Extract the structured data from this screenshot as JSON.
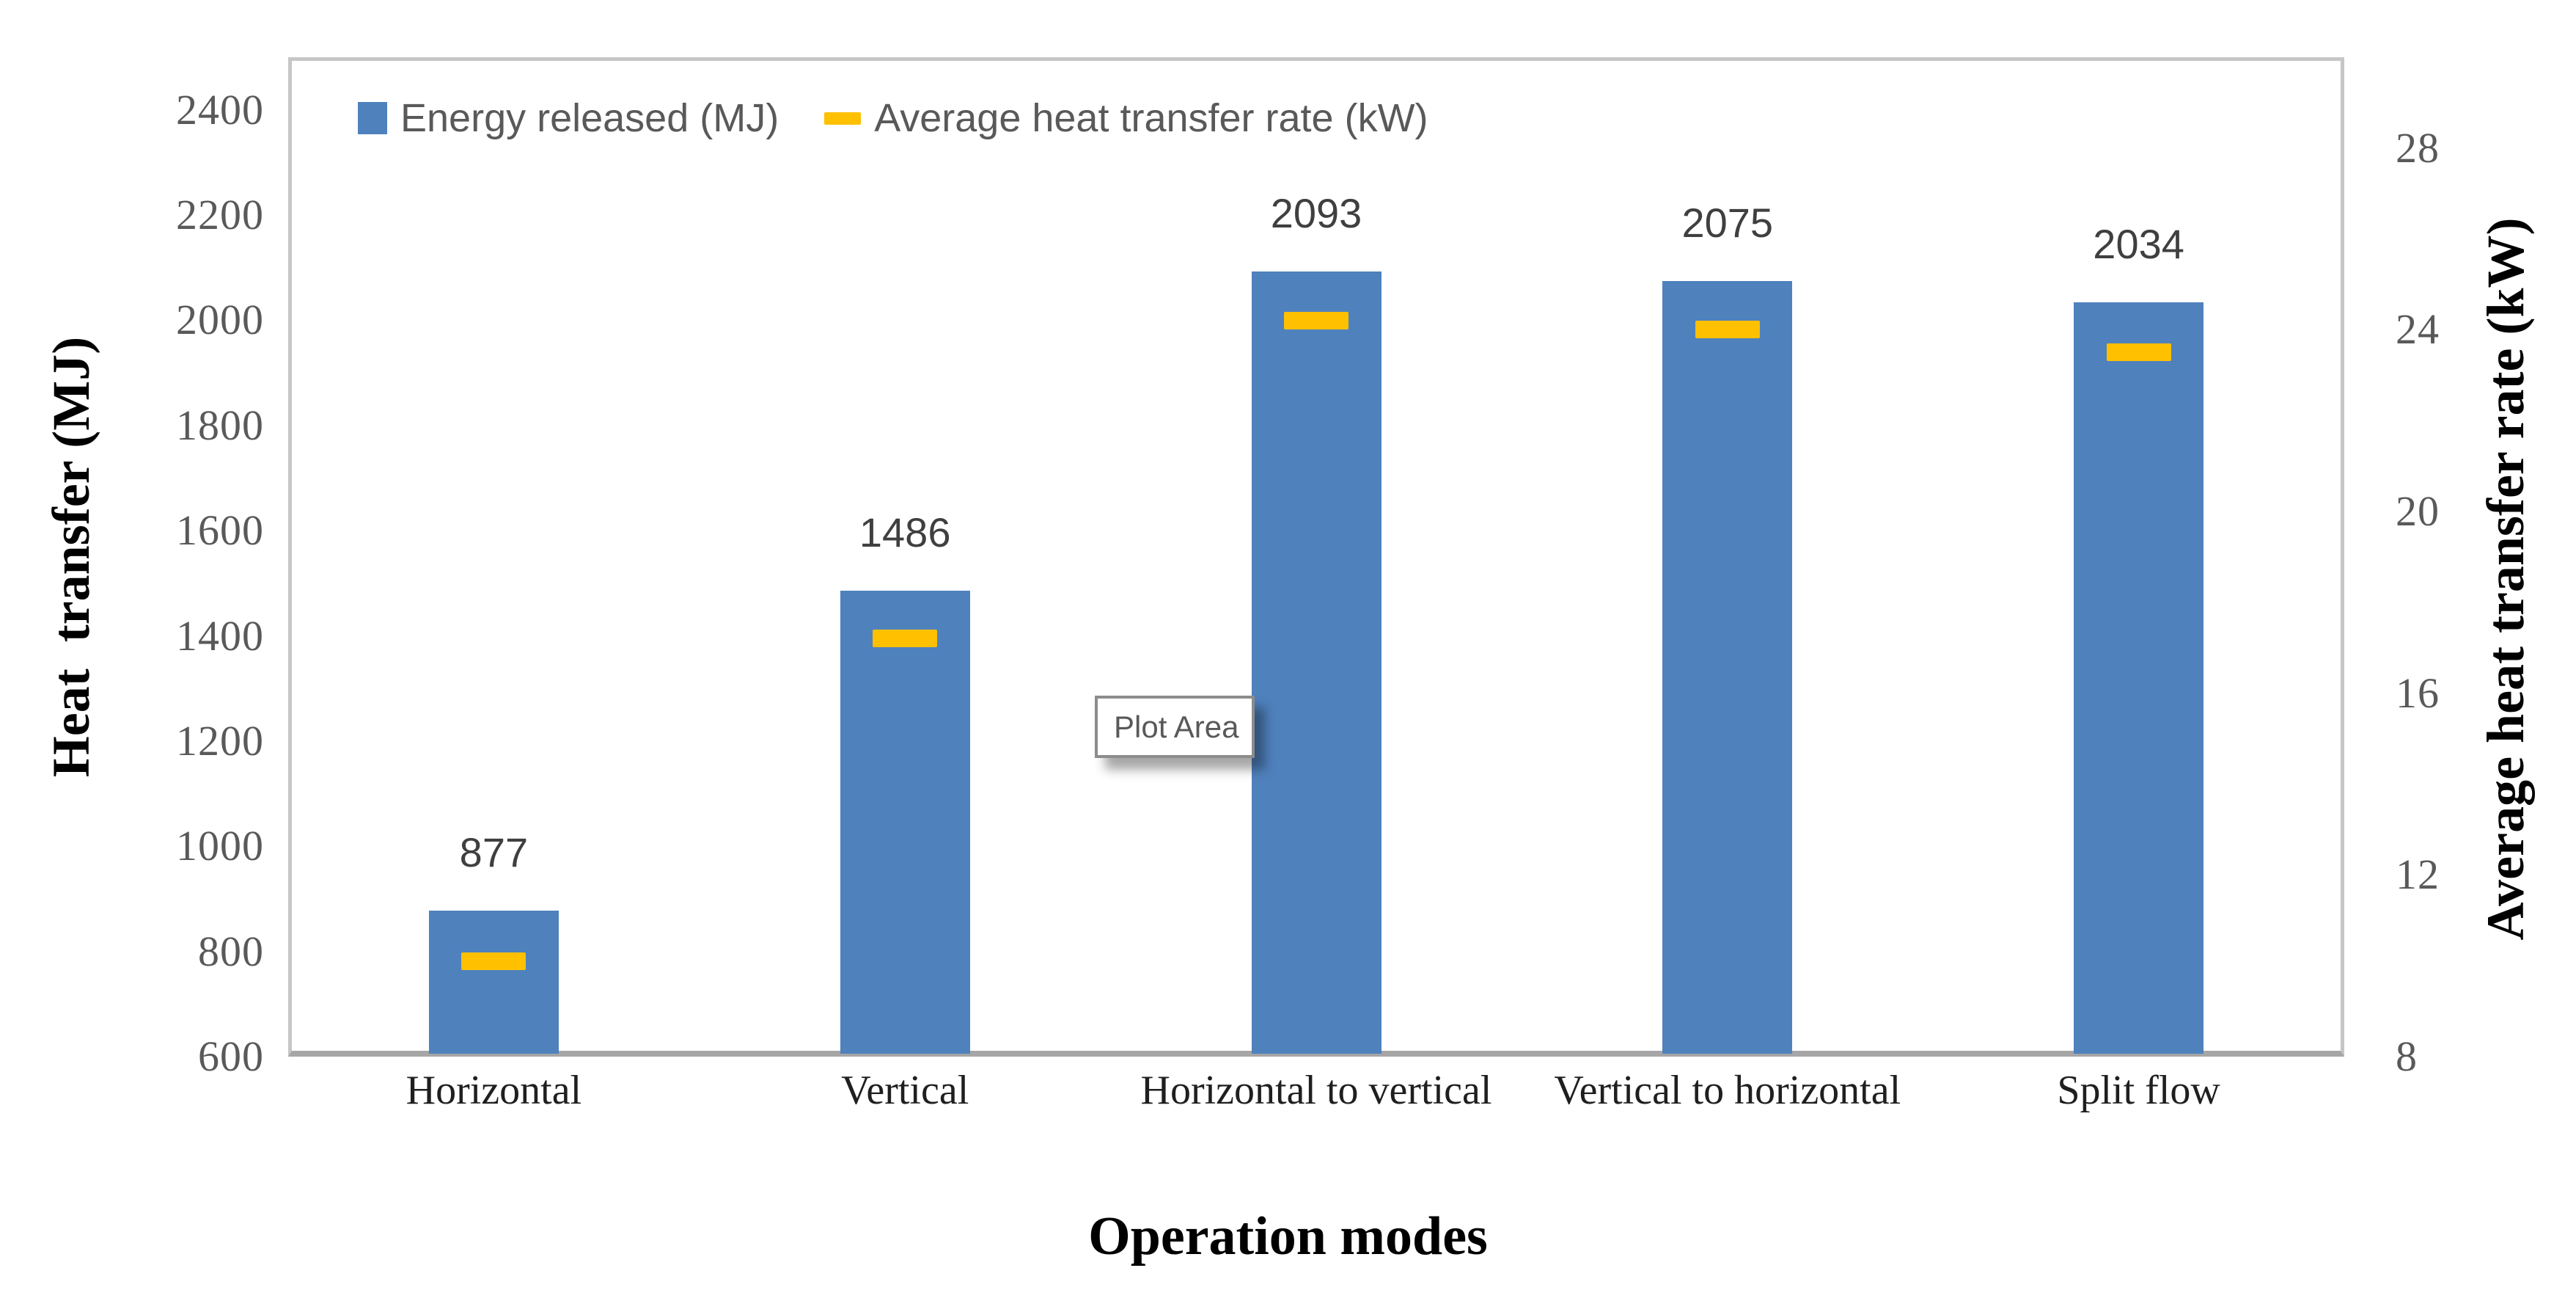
{
  "chart_data": {
    "type": "bar",
    "categories": [
      "Horizontal",
      "Vertical",
      "Horizontal to vertical",
      "Vertical to horizontal",
      "Split flow"
    ],
    "series": [
      {
        "name": "Energy released (MJ)",
        "type": "bar",
        "axis": "left",
        "color": "#4F81BD",
        "values": [
          877,
          1486,
          2093,
          2075,
          2034
        ],
        "data_labels": [
          "877",
          "1486",
          "2093",
          "2075",
          "2034"
        ]
      },
      {
        "name": "Average heat transfer rate (kW)",
        "type": "dash",
        "axis": "right",
        "color": "#FFC000",
        "values": [
          10.1,
          17.2,
          24.2,
          24.0,
          23.5
        ]
      }
    ],
    "left_axis": {
      "label": "Heat  transfer (MJ)",
      "min": 600,
      "max": 2500,
      "ticks": [
        2400,
        2200,
        2000,
        1800,
        1600,
        1400,
        1200,
        1000,
        800,
        600
      ]
    },
    "right_axis": {
      "label": "Average heat transfer rate (kW)",
      "min": 8,
      "max": 30,
      "ticks": [
        28,
        24,
        20,
        16,
        12,
        8
      ]
    },
    "x_axis": {
      "label": "Operation modes"
    },
    "legend": {
      "position": "top-left-inside",
      "entries": [
        "Energy released (MJ)",
        "Average heat transfer rate (kW)"
      ]
    },
    "tooltip": {
      "text": "Plot Area"
    },
    "grid": false,
    "plot_background": "#ffffff"
  }
}
